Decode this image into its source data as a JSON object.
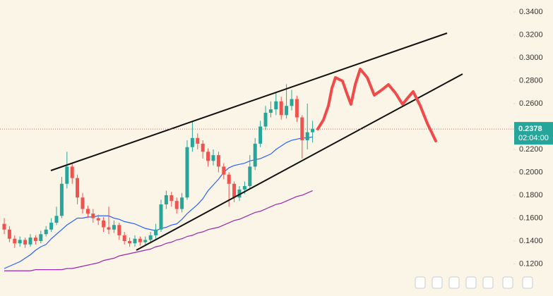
{
  "chart_data": {
    "type": "candlestick",
    "open": [
      0.155,
      0.15,
      0.142,
      0.138,
      0.141,
      0.137,
      0.143,
      0.14,
      0.146,
      0.15,
      0.156,
      0.162,
      0.19,
      0.205,
      0.195,
      0.178,
      0.168,
      0.164,
      0.16,
      0.158,
      0.152,
      0.15,
      0.154,
      0.145,
      0.14,
      0.138,
      0.142,
      0.139,
      0.141,
      0.145,
      0.15,
      0.172,
      0.18,
      0.175,
      0.168,
      0.178,
      0.222,
      0.23,
      0.225,
      0.218,
      0.21,
      0.215,
      0.205,
      0.198,
      0.19,
      0.178,
      0.185,
      0.188,
      0.205,
      0.225,
      0.24,
      0.252,
      0.255,
      0.262,
      0.25,
      0.258,
      0.264,
      0.248,
      0.228,
      0.235
    ],
    "high": [
      0.16,
      0.153,
      0.145,
      0.144,
      0.143,
      0.146,
      0.145,
      0.149,
      0.153,
      0.16,
      0.17,
      0.196,
      0.218,
      0.208,
      0.198,
      0.182,
      0.171,
      0.168,
      0.163,
      0.161,
      0.17,
      0.158,
      0.156,
      0.148,
      0.143,
      0.145,
      0.144,
      0.144,
      0.148,
      0.155,
      0.176,
      0.184,
      0.183,
      0.178,
      0.182,
      0.228,
      0.245,
      0.234,
      0.228,
      0.221,
      0.22,
      0.218,
      0.208,
      0.2,
      0.192,
      0.188,
      0.192,
      0.215,
      0.23,
      0.245,
      0.258,
      0.262,
      0.27,
      0.266,
      0.277,
      0.272,
      0.267,
      0.25,
      0.26,
      0.245
    ],
    "low": [
      0.146,
      0.139,
      0.134,
      0.135,
      0.134,
      0.135,
      0.137,
      0.138,
      0.144,
      0.148,
      0.154,
      0.16,
      0.186,
      0.19,
      0.172,
      0.164,
      0.16,
      0.156,
      0.154,
      0.148,
      0.146,
      0.147,
      0.141,
      0.137,
      0.135,
      0.135,
      0.136,
      0.137,
      0.139,
      0.142,
      0.148,
      0.168,
      0.17,
      0.164,
      0.165,
      0.176,
      0.218,
      0.22,
      0.212,
      0.205,
      0.206,
      0.2,
      0.194,
      0.17,
      0.174,
      0.175,
      0.181,
      0.185,
      0.202,
      0.222,
      0.237,
      0.248,
      0.25,
      0.246,
      0.247,
      0.254,
      0.244,
      0.212,
      0.22,
      0.226
    ],
    "close": [
      0.15,
      0.142,
      0.138,
      0.141,
      0.137,
      0.143,
      0.14,
      0.146,
      0.15,
      0.156,
      0.162,
      0.19,
      0.205,
      0.195,
      0.178,
      0.168,
      0.164,
      0.16,
      0.158,
      0.152,
      0.15,
      0.154,
      0.145,
      0.14,
      0.138,
      0.142,
      0.139,
      0.141,
      0.145,
      0.15,
      0.172,
      0.18,
      0.175,
      0.168,
      0.178,
      0.222,
      0.23,
      0.225,
      0.218,
      0.21,
      0.215,
      0.205,
      0.198,
      0.19,
      0.178,
      0.185,
      0.188,
      0.205,
      0.225,
      0.24,
      0.252,
      0.255,
      0.262,
      0.25,
      0.258,
      0.264,
      0.248,
      0.228,
      0.235,
      0.238
    ],
    "up_color": "#26a69a",
    "down_color": "#ef5350",
    "overlays": [
      {
        "color": "#2962ff",
        "values": [
          0.116,
          0.118,
          0.12,
          0.122,
          0.125,
          0.128,
          0.132,
          0.135,
          0.137,
          0.142,
          0.146,
          0.15,
          0.154,
          0.157,
          0.16,
          0.16,
          0.161,
          0.161,
          0.162,
          0.162,
          0.162,
          0.16,
          0.159,
          0.157,
          0.156,
          0.155,
          0.153,
          0.151,
          0.15,
          0.149,
          0.151,
          0.152,
          0.154,
          0.155,
          0.159,
          0.164,
          0.168,
          0.172,
          0.177,
          0.184,
          0.189,
          0.194,
          0.2,
          0.204,
          0.206,
          0.207,
          0.208,
          0.21,
          0.211,
          0.212,
          0.214,
          0.216,
          0.22,
          0.223,
          0.226,
          0.228,
          0.229,
          0.23,
          0.23,
          0.231
        ]
      },
      {
        "color": "#9c27b0",
        "values": [
          0.114,
          0.114,
          0.114,
          0.114,
          0.114,
          0.114,
          0.115,
          0.115,
          0.115,
          0.115,
          0.115,
          0.115,
          0.116,
          0.116,
          0.117,
          0.118,
          0.119,
          0.12,
          0.121,
          0.123,
          0.124,
          0.125,
          0.127,
          0.128,
          0.129,
          0.13,
          0.131,
          0.132,
          0.133,
          0.135,
          0.136,
          0.138,
          0.139,
          0.141,
          0.142,
          0.144,
          0.145,
          0.147,
          0.148,
          0.15,
          0.151,
          0.152,
          0.154,
          0.156,
          0.158,
          0.159,
          0.161,
          0.163,
          0.165,
          0.166,
          0.168,
          0.17,
          0.172,
          0.173,
          0.175,
          0.177,
          0.179,
          0.18,
          0.182,
          0.184
        ]
      }
    ],
    "ylim": [
      0.092,
      0.3505
    ],
    "yticks": [
      {
        "value": 0.12,
        "label": "0.1200"
      },
      {
        "value": 0.14,
        "label": "0.1400"
      },
      {
        "value": 0.16,
        "label": "0.1600"
      },
      {
        "value": 0.18,
        "label": "0.1800"
      },
      {
        "value": 0.2,
        "label": "0.2000"
      },
      {
        "value": 0.22,
        "label": "0.2200"
      },
      {
        "value": 0.26,
        "label": "0.2600"
      },
      {
        "value": 0.28,
        "label": "0.2800"
      },
      {
        "value": 0.3,
        "label": "0.3000"
      },
      {
        "value": 0.32,
        "label": "0.3200"
      },
      {
        "value": 0.34,
        "label": "0.3400"
      }
    ],
    "last_price": 0.2378,
    "countdown": "02:04:00"
  }
}
